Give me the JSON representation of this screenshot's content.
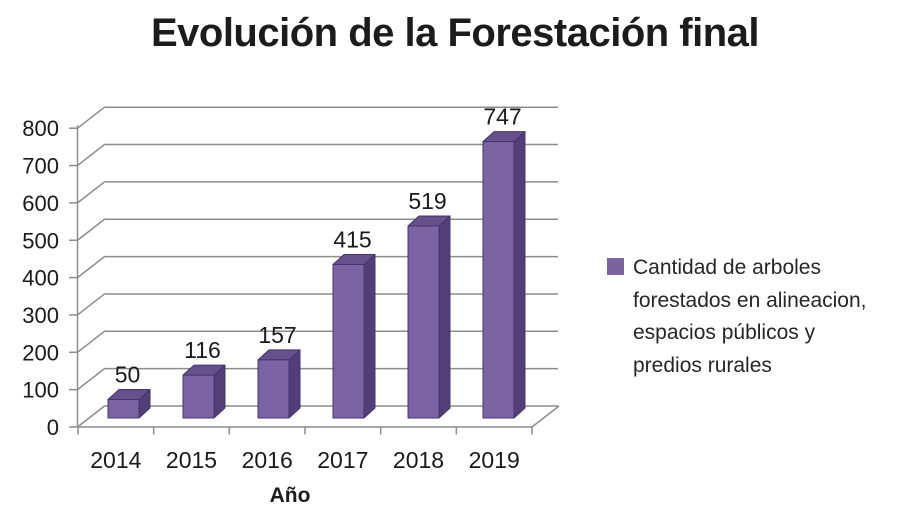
{
  "title": "Evolución de la Forestación final",
  "axis": {
    "x_title": "Año"
  },
  "legend": {
    "marker_color": "#7B639E",
    "lines": [
      "Cantidad de arboles",
      "forestados en alineacion,",
      "espacios públicos y",
      "predios rurales"
    ]
  },
  "chart_data": {
    "type": "bar",
    "style": "3d-column",
    "title": "Evolución de la Forestación final",
    "xlabel": "Año",
    "ylabel": "",
    "categories": [
      "2014",
      "2015",
      "2016",
      "2017",
      "2018",
      "2019"
    ],
    "values": [
      50,
      116,
      157,
      415,
      519,
      747
    ],
    "series_name": "Cantidad de arboles forestados en alineacion, espacios públicos y predios rurales",
    "ylim": [
      0,
      800
    ],
    "ytick_step": 100,
    "grid": true,
    "data_labels": true,
    "legend_position": "right",
    "colors": {
      "bar_front": "#7C64A4",
      "bar_top": "#67518C",
      "bar_side": "#533E77",
      "bar_outline": "#46346C",
      "gridline": "#8C8C8C",
      "text": "#1a1a1a"
    }
  }
}
